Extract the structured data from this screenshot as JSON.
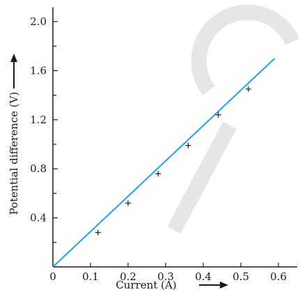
{
  "chart_data": {
    "type": "line",
    "title": "",
    "xlabel": "Current (A)",
    "ylabel": "Potential difference (V)",
    "xlim": [
      0,
      0.65
    ],
    "ylim": [
      0,
      2.1
    ],
    "x_ticks": [
      "0",
      "0.1",
      "0.2",
      "0.3",
      "0.4",
      "0.5",
      "0.6"
    ],
    "x_tick_values": [
      0,
      0.1,
      0.2,
      0.3,
      0.4,
      0.5,
      0.6
    ],
    "y_ticks": [
      "0.4",
      "0.8",
      "1.2",
      "1.6",
      "2.0"
    ],
    "y_tick_values": [
      0.4,
      0.8,
      1.2,
      1.6,
      2.0
    ],
    "grid": false,
    "series": [
      {
        "points": [
          {
            "x": 0.12,
            "y": 0.28
          },
          {
            "x": 0.2,
            "y": 0.52
          },
          {
            "x": 0.28,
            "y": 0.76
          },
          {
            "x": 0.36,
            "y": 0.99
          },
          {
            "x": 0.44,
            "y": 1.24
          },
          {
            "x": 0.52,
            "y": 1.45
          }
        ],
        "fit_line": {
          "x": [
            0,
            0.59
          ],
          "y": [
            0,
            1.7
          ]
        }
      }
    ],
    "colors": {
      "line": "#1ea1e6",
      "axis": "#1a1a1a",
      "marker": "#1a1a1a"
    }
  }
}
